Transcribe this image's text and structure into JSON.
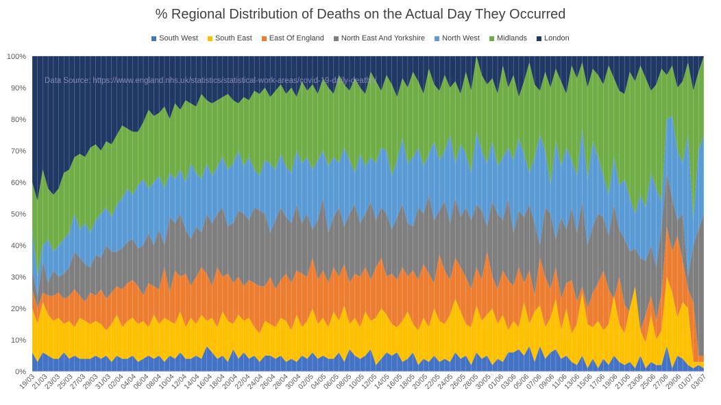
{
  "chart_data": {
    "type": "area",
    "stacked": true,
    "title": "% Regional Distribution of Deaths on the Actual Day They Occurred",
    "annotation": "Data Source: https://www.england.nhs.uk/statistics/statistical-work-areas/covid-19-daily-deaths/",
    "xlabel": "",
    "ylabel": "",
    "ylim": [
      0,
      100
    ],
    "y_ticks": [
      "0%",
      "10%",
      "20%",
      "30%",
      "40%",
      "50%",
      "60%",
      "70%",
      "80%",
      "90%",
      "100%"
    ],
    "tick_labels": [
      "19/03",
      "21/03",
      "23/03",
      "25/03",
      "27/03",
      "29/03",
      "31/03",
      "02/04",
      "04/04",
      "06/04",
      "08/04",
      "10/04",
      "12/04",
      "14/04",
      "16/04",
      "18/04",
      "20/04",
      "22/04",
      "24/04",
      "26/04",
      "28/04",
      "30/04",
      "02/05",
      "04/05",
      "06/05",
      "08/05",
      "10/05",
      "12/05",
      "14/05",
      "16/05",
      "18/05",
      "20/05",
      "22/05",
      "24/05",
      "26/05",
      "28/05",
      "30/05",
      "01/06",
      "03/06",
      "05/06",
      "07/06",
      "09/06",
      "11/06",
      "13/06",
      "15/06",
      "17/06",
      "19/06",
      "21/06",
      "23/06",
      "25/06",
      "27/06",
      "29/06",
      "01/07",
      "03/07"
    ],
    "legend": [
      "South West",
      "South East",
      "East Of England",
      "North East And Yorkshire",
      "North West",
      "Midlands",
      "London"
    ],
    "legend_position": "top",
    "cumulative_pct": {
      "South West": [
        6,
        3,
        6,
        5,
        4,
        4,
        6,
        4,
        5,
        4,
        4,
        4,
        5,
        4,
        5,
        3,
        5,
        4,
        4,
        5,
        3,
        4,
        5,
        4,
        5,
        3,
        5,
        4,
        6,
        4,
        4,
        5,
        4,
        8,
        6,
        4,
        5,
        3,
        7,
        4,
        6,
        4,
        5,
        3,
        5,
        5,
        4,
        5,
        3,
        4,
        3,
        5,
        4,
        6,
        4,
        5,
        4,
        4,
        6,
        3,
        7,
        5,
        4,
        5,
        7,
        2,
        4,
        6,
        5,
        6,
        3,
        4,
        6,
        2,
        4,
        3,
        5,
        3,
        4,
        3,
        6,
        4,
        5,
        2,
        6,
        4,
        5,
        2,
        4,
        3,
        6,
        6,
        7,
        5,
        8,
        3,
        8,
        4,
        6,
        7,
        4,
        5,
        3,
        2,
        5,
        1,
        4,
        1,
        4,
        2,
        5,
        3,
        2,
        3,
        1,
        5,
        1,
        3,
        2,
        2,
        8,
        1,
        5,
        4,
        2,
        1,
        2,
        1
      ],
      "South East": [
        20,
        15,
        22,
        18,
        16,
        17,
        15,
        16,
        14,
        17,
        16,
        15,
        16,
        15,
        13,
        15,
        18,
        14,
        16,
        17,
        15,
        16,
        14,
        18,
        15,
        17,
        16,
        15,
        19,
        14,
        17,
        15,
        18,
        16,
        17,
        14,
        19,
        16,
        15,
        18,
        16,
        17,
        14,
        12,
        16,
        15,
        14,
        17,
        16,
        13,
        18,
        14,
        16,
        20,
        15,
        17,
        14,
        19,
        16,
        21,
        15,
        17,
        14,
        19,
        16,
        17,
        20,
        18,
        15,
        14,
        16,
        19,
        15,
        13,
        17,
        14,
        20,
        16,
        15,
        18,
        23,
        19,
        15,
        14,
        21,
        16,
        18,
        20,
        15,
        18,
        13,
        16,
        14,
        22,
        15,
        19,
        21,
        14,
        17,
        23,
        13,
        20,
        12,
        15,
        25,
        15,
        14,
        16,
        13,
        15,
        24,
        15,
        12,
        20,
        27,
        13,
        9,
        18,
        10,
        13,
        30,
        25,
        17,
        22,
        20,
        3,
        3,
        3
      ],
      "East Of England": [
        26,
        20,
        25,
        24,
        24,
        25,
        23,
        24,
        26,
        24,
        22,
        25,
        24,
        26,
        23,
        25,
        27,
        26,
        28,
        29,
        27,
        24,
        28,
        27,
        26,
        33,
        25,
        32,
        30,
        31,
        27,
        30,
        33,
        31,
        27,
        33,
        30,
        31,
        28,
        30,
        27,
        29,
        28,
        27,
        27,
        30,
        26,
        29,
        31,
        28,
        32,
        31,
        30,
        36,
        29,
        32,
        28,
        33,
        30,
        34,
        28,
        31,
        30,
        33,
        29,
        33,
        36,
        30,
        31,
        29,
        33,
        30,
        32,
        29,
        34,
        31,
        28,
        37,
        32,
        29,
        36,
        33,
        30,
        26,
        33,
        29,
        38,
        30,
        26,
        32,
        29,
        27,
        33,
        28,
        32,
        24,
        36,
        30,
        26,
        33,
        23,
        28,
        29,
        22,
        27,
        20,
        25,
        28,
        32,
        26,
        23,
        30,
        21,
        19,
        24,
        13,
        18,
        24,
        16,
        25,
        46,
        38,
        43,
        35,
        26,
        22,
        5,
        5
      ],
      "North East And Yorkshire": [
        32,
        24,
        35,
        28,
        32,
        30,
        31,
        33,
        38,
        36,
        34,
        33,
        37,
        36,
        40,
        38,
        38,
        39,
        41,
        42,
        39,
        40,
        44,
        40,
        45,
        40,
        49,
        47,
        50,
        45,
        42,
        46,
        44,
        50,
        47,
        50,
        52,
        46,
        47,
        51,
        50,
        48,
        52,
        51,
        50,
        44,
        48,
        52,
        49,
        47,
        53,
        47,
        50,
        45,
        48,
        55,
        44,
        49,
        52,
        46,
        50,
        53,
        47,
        50,
        54,
        48,
        52,
        50,
        45,
        49,
        53,
        47,
        46,
        52,
        50,
        56,
        48,
        51,
        54,
        47,
        55,
        49,
        52,
        48,
        53,
        51,
        46,
        54,
        50,
        48,
        55,
        44,
        51,
        49,
        53,
        47,
        40,
        52,
        50,
        42,
        49,
        45,
        52,
        44,
        54,
        40,
        46,
        50,
        49,
        43,
        53,
        45,
        42,
        38,
        39,
        36,
        35,
        40,
        33,
        46,
        63,
        55,
        48,
        50,
        30,
        40,
        45,
        50
      ],
      "North West": [
        45,
        30,
        40,
        42,
        38,
        40,
        42,
        44,
        50,
        45,
        47,
        44,
        48,
        50,
        52,
        49,
        53,
        55,
        58,
        56,
        59,
        61,
        58,
        60,
        62,
        58,
        63,
        61,
        64,
        60,
        66,
        63,
        61,
        66,
        62,
        65,
        68,
        64,
        66,
        70,
        65,
        68,
        64,
        62,
        67,
        66,
        64,
        69,
        65,
        63,
        70,
        66,
        68,
        64,
        67,
        70,
        65,
        68,
        66,
        71,
        67,
        63,
        69,
        65,
        68,
        66,
        71,
        70,
        62,
        67,
        74,
        66,
        68,
        71,
        65,
        69,
        73,
        67,
        70,
        75,
        66,
        72,
        69,
        63,
        76,
        70,
        66,
        73,
        65,
        68,
        71,
        67,
        74,
        69,
        63,
        68,
        75,
        70,
        59,
        73,
        65,
        71,
        67,
        62,
        77,
        61,
        73,
        68,
        62,
        56,
        68,
        59,
        61,
        55,
        50,
        56,
        52,
        63,
        58,
        54,
        80,
        81,
        70,
        66,
        75,
        48,
        70,
        75
      ],
      "Midlands": [
        60,
        54,
        64,
        58,
        56,
        58,
        63,
        64,
        68,
        69,
        68,
        71,
        72,
        70,
        73,
        72,
        75,
        78,
        77,
        76,
        76,
        79,
        83,
        81,
        82,
        84,
        80,
        85,
        83,
        86,
        85,
        84,
        88,
        86,
        85,
        86,
        87,
        88,
        86,
        85,
        87,
        86,
        89,
        88,
        90,
        87,
        89,
        91,
        88,
        90,
        87,
        92,
        89,
        91,
        88,
        93,
        90,
        88,
        94,
        91,
        89,
        93,
        90,
        88,
        95,
        92,
        89,
        94,
        91,
        87,
        93,
        90,
        95,
        92,
        88,
        96,
        91,
        89,
        94,
        90,
        92,
        88,
        95,
        89,
        100,
        94,
        91,
        93,
        88,
        97,
        90,
        94,
        87,
        92,
        98,
        91,
        89,
        95,
        90,
        96,
        92,
        88,
        97,
        93,
        98,
        90,
        96,
        94,
        91,
        97,
        93,
        89,
        88,
        95,
        92,
        97,
        93,
        89,
        91,
        96,
        94,
        97,
        90,
        92,
        98,
        89,
        95,
        100
      ],
      "London": [
        100,
        100,
        100,
        100,
        100,
        100,
        100,
        100,
        100,
        100,
        100,
        100,
        100,
        100,
        100,
        100,
        100,
        100,
        100,
        100,
        100,
        100,
        100,
        100,
        100,
        100,
        100,
        100,
        100,
        100,
        100,
        100,
        100,
        100,
        100,
        100,
        100,
        100,
        100,
        100,
        100,
        100,
        100,
        100,
        100,
        100,
        100,
        100,
        100,
        100,
        100,
        100,
        100,
        100,
        100,
        100,
        100,
        100,
        100,
        100,
        100,
        100,
        100,
        100,
        100,
        100,
        100,
        100,
        100,
        100,
        100,
        100,
        100,
        100,
        100,
        100,
        100,
        100,
        100,
        100,
        100,
        100,
        100,
        100,
        100,
        100,
        100,
        100,
        100,
        100,
        100,
        100,
        100,
        100,
        100,
        100,
        100,
        100,
        100,
        100,
        100,
        100,
        100,
        100,
        100,
        100,
        100,
        100,
        100,
        100,
        100,
        100,
        100,
        100,
        100,
        100,
        100,
        100,
        100,
        100,
        100,
        100,
        100,
        100,
        100,
        100,
        100,
        100
      ]
    }
  },
  "colors": {
    "South West": "#4472c4",
    "South East": "#ffc000",
    "East Of England": "#ed7d31",
    "North East And Yorkshire": "#7f7f7f",
    "North West": "#5b9bd5",
    "Midlands": "#70ad47",
    "London": "#203864"
  }
}
